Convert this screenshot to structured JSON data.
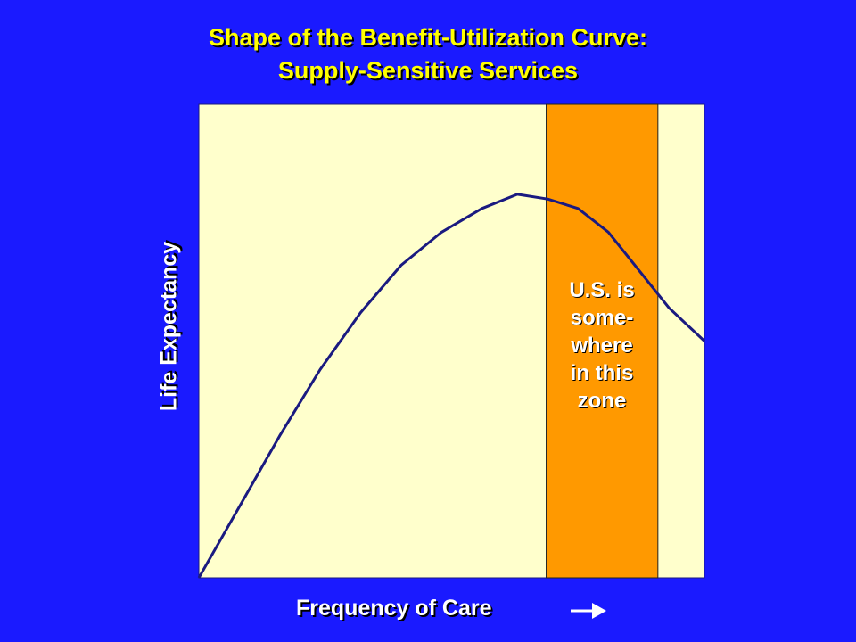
{
  "chart_data": {
    "type": "line",
    "title": [
      "Shape of the Benefit-Utilization Curve:",
      "Supply-Sensitive Services"
    ],
    "xlabel": "Frequency of Care",
    "ylabel": "Life Expectancy",
    "xlim": [
      0,
      1
    ],
    "ylim": [
      0,
      1
    ],
    "grid": false,
    "colors": {
      "background": "#1a1aff",
      "plot_area": "#ffffcc",
      "zone": "#ff9900",
      "curve": "#1a1a80",
      "title": "#ffff00",
      "labels": "#ffffff"
    },
    "series": [
      {
        "x": [
          0,
          0.08,
          0.16,
          0.24,
          0.32,
          0.4,
          0.48,
          0.56,
          0.63,
          0.69,
          0.75,
          0.81,
          0.87,
          0.93,
          1.0
        ],
        "y": [
          0,
          0.15,
          0.3,
          0.44,
          0.56,
          0.66,
          0.73,
          0.78,
          0.81,
          0.8,
          0.78,
          0.73,
          0.65,
          0.57,
          0.5
        ]
      }
    ],
    "shaded_zone": {
      "x_range": [
        0.687,
        0.908
      ],
      "label_lines": [
        "U.S. is",
        "some-",
        "where",
        "in this",
        "zone"
      ]
    },
    "arrow_icon": "right-arrow-icon"
  }
}
